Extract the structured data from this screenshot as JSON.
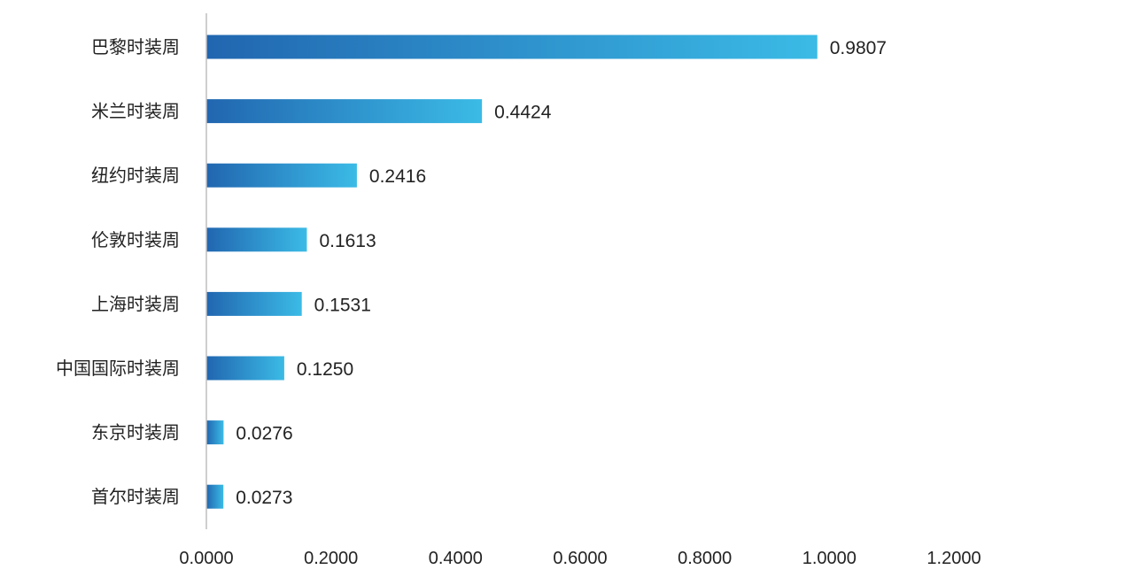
{
  "chart_data": {
    "type": "bar",
    "orientation": "horizontal",
    "categories": [
      "巴黎时装周",
      "米兰时装周",
      "纽约时装周",
      "伦敦时装周",
      "上海时装周",
      "中国国际时装周",
      "东京时装周",
      "首尔时装周"
    ],
    "values": [
      0.9807,
      0.4424,
      0.2416,
      0.1613,
      0.1531,
      0.125,
      0.0276,
      0.0273
    ],
    "value_labels": [
      "0.9807",
      "0.4424",
      "0.2416",
      "0.1613",
      "0.1531",
      "0.1250",
      "0.0276",
      "0.0273"
    ],
    "x_ticks": [
      "0.0000",
      "0.2000",
      "0.4000",
      "0.6000",
      "0.8000",
      "1.0000",
      "1.2000"
    ],
    "xlim": [
      0,
      1.2
    ],
    "grid": false,
    "legend": "none",
    "colors": {
      "bar_start": "#2166b0",
      "bar_end": "#3bbbe6",
      "axis": "#bfbfbf",
      "text": "#222222"
    }
  }
}
